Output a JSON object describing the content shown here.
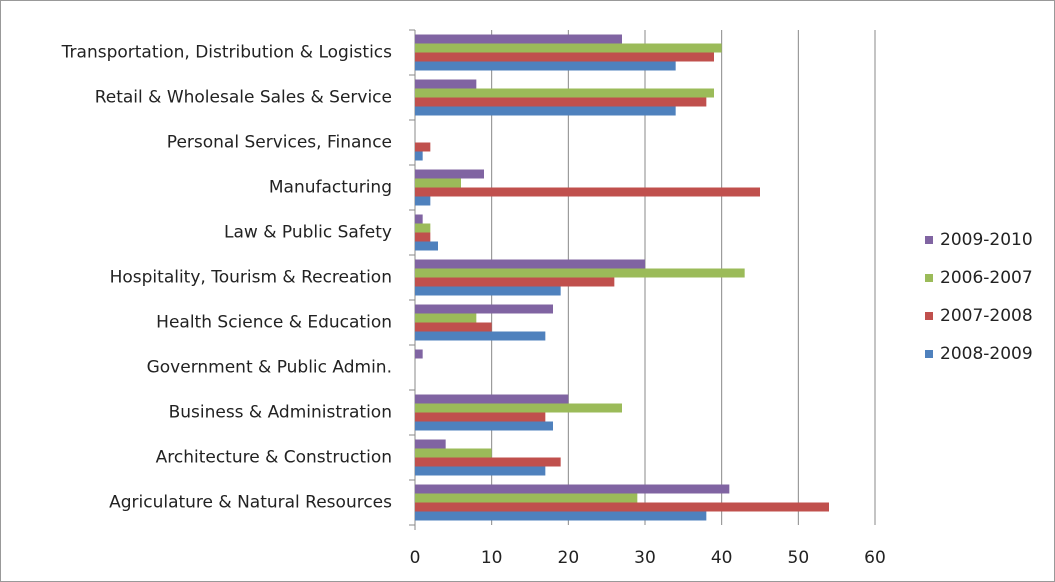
{
  "chart_data": {
    "type": "hbar",
    "categories": [
      "Agriculature & Natural Resources",
      "Architecture & Construction",
      "Business & Administration",
      "Government & Public Admin.",
      "Health Science & Education",
      "Hospitality, Tourism & Recreation",
      "Law & Public Safety",
      "Manufacturing",
      "Personal Services, Finance",
      "Retail & Wholesale Sales & Service",
      "Transportation, Distribution & Logistics"
    ],
    "series": [
      {
        "name": "2009-2010",
        "color": "#8064a2",
        "values": [
          41,
          4,
          20,
          1,
          18,
          30,
          1,
          9,
          0,
          8,
          27
        ]
      },
      {
        "name": "2006-2007",
        "color": "#9bbb59",
        "values": [
          29,
          10,
          27,
          0,
          8,
          43,
          2,
          6,
          0,
          39,
          40
        ]
      },
      {
        "name": "2007-2008",
        "color": "#c0504d",
        "values": [
          54,
          19,
          17,
          0,
          10,
          26,
          2,
          45,
          2,
          38,
          39
        ]
      },
      {
        "name": "2008-2009",
        "color": "#4f81bd",
        "values": [
          38,
          17,
          18,
          0,
          17,
          19,
          3,
          2,
          1,
          34,
          34
        ]
      }
    ],
    "xlim": [
      0,
      60
    ],
    "xticks": [
      0,
      10,
      20,
      30,
      40,
      50,
      60
    ],
    "grid": true,
    "legend": "right"
  }
}
